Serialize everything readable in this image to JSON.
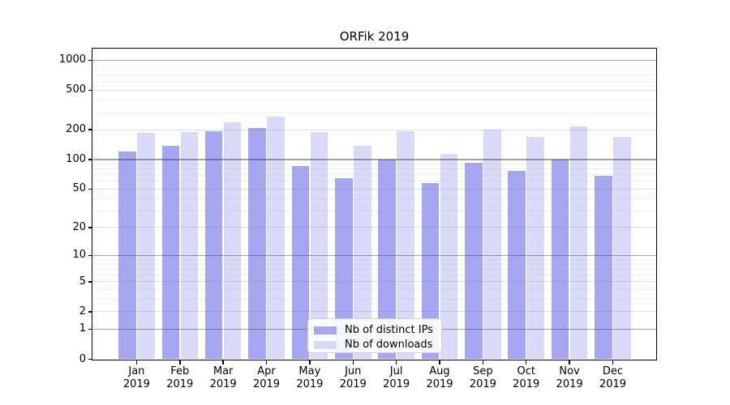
{
  "chart_data": {
    "type": "bar",
    "title": "ORFik 2019",
    "categories": [
      "Jan",
      "Feb",
      "Mar",
      "Apr",
      "May",
      "Jun",
      "Jul",
      "Aug",
      "Sep",
      "Oct",
      "Nov",
      "Dec"
    ],
    "year_label": "2019",
    "series": [
      {
        "name": "Nb of distinct IPs",
        "color": "#a6a6f2",
        "values": [
          120,
          139,
          192,
          209,
          86,
          65,
          100,
          58,
          93,
          76,
          100,
          68
        ]
      },
      {
        "name": "Nb of downloads",
        "color": "#d9d9f8",
        "values": [
          186,
          190,
          238,
          269,
          190,
          137,
          193,
          114,
          201,
          171,
          218,
          168
        ]
      }
    ],
    "y_ticks": [
      0,
      1,
      2,
      5,
      10,
      20,
      50,
      100,
      200,
      500,
      1000
    ],
    "y_scale": "log1p",
    "ylim": [
      0,
      1300
    ],
    "xlabel": "",
    "ylabel": "",
    "grid": true,
    "legend_position": "lower center"
  }
}
